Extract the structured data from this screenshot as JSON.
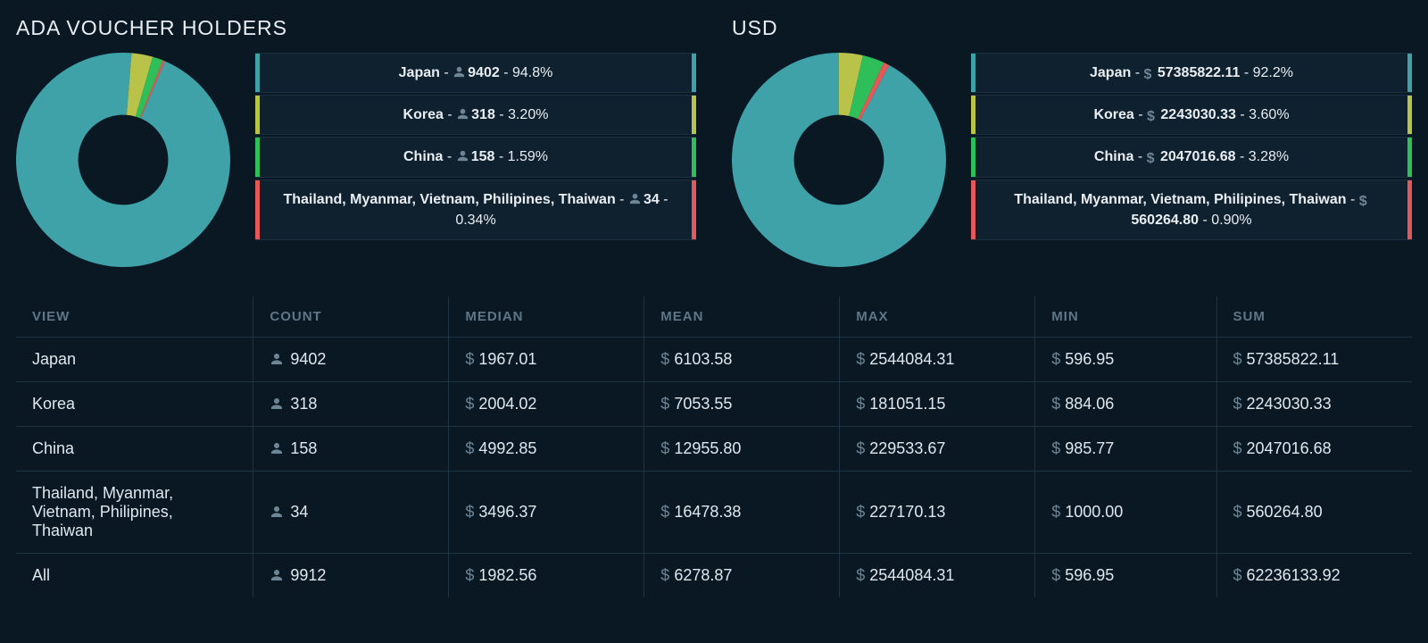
{
  "colors": {
    "teal": "#3fa2a8",
    "olive": "#b9c34a",
    "green": "#2fbf5a",
    "red": "#e35858",
    "bg": "#0a1824",
    "panel": "#0f212f",
    "text": "#e8eef3",
    "muted": "#5e7686",
    "iconMuted": "#6e8595"
  },
  "panels": [
    {
      "key": "holders",
      "title": "ADA VOUCHER HOLDERS",
      "valueIcon": "person",
      "donut": {
        "type": "donut",
        "size": 240,
        "innerRadiusRatio": 0.42,
        "startAngleDeg": -67,
        "slices": [
          {
            "label": "Japan",
            "percent": 94.8,
            "color": "#3fa2a8"
          },
          {
            "label": "Korea",
            "percent": 3.2,
            "color": "#b9c34a"
          },
          {
            "label": "China",
            "percent": 1.59,
            "color": "#2fbf5a"
          },
          {
            "label": "Thailand, Myanmar, Vietnam, Philipines, Thaiwan",
            "percent": 0.34,
            "color": "#e35858"
          }
        ]
      },
      "legend": [
        {
          "label": "Japan",
          "value": "9402",
          "percent": "94.8%",
          "color": "#3fa2a8"
        },
        {
          "label": "Korea",
          "value": "318",
          "percent": "3.20%",
          "color": "#b9c34a"
        },
        {
          "label": "China",
          "value": "158",
          "percent": "1.59%",
          "color": "#2fbf5a"
        },
        {
          "label": "Thailand, Myanmar, Vietnam, Philipines, Thaiwan",
          "value": "34",
          "percent": "0.34%",
          "color": "#e35858"
        }
      ]
    },
    {
      "key": "usd",
      "title": "USD",
      "valueIcon": "dollar",
      "donut": {
        "type": "donut",
        "size": 240,
        "innerRadiusRatio": 0.42,
        "startAngleDeg": -62,
        "slices": [
          {
            "label": "Japan",
            "percent": 92.2,
            "color": "#3fa2a8"
          },
          {
            "label": "Korea",
            "percent": 3.6,
            "color": "#b9c34a"
          },
          {
            "label": "China",
            "percent": 3.28,
            "color": "#2fbf5a"
          },
          {
            "label": "Thailand, Myanmar, Vietnam, Philipines, Thaiwan",
            "percent": 0.9,
            "color": "#e35858"
          }
        ]
      },
      "legend": [
        {
          "label": "Japan",
          "value": "57385822.11",
          "percent": "92.2%",
          "color": "#3fa2a8"
        },
        {
          "label": "Korea",
          "value": "2243030.33",
          "percent": "3.60%",
          "color": "#b9c34a"
        },
        {
          "label": "China",
          "value": "2047016.68",
          "percent": "3.28%",
          "color": "#2fbf5a"
        },
        {
          "label": "Thailand, Myanmar, Vietnam, Philipines, Thaiwan",
          "value": "560264.80",
          "percent": "0.90%",
          "color": "#e35858"
        }
      ]
    }
  ],
  "table": {
    "columns": [
      {
        "key": "view",
        "label": "VIEW"
      },
      {
        "key": "count",
        "label": "COUNT"
      },
      {
        "key": "median",
        "label": "MEDIAN"
      },
      {
        "key": "mean",
        "label": "MEAN"
      },
      {
        "key": "max",
        "label": "MAX"
      },
      {
        "key": "min",
        "label": "MIN"
      },
      {
        "key": "sum",
        "label": "SUM"
      }
    ],
    "rows": [
      {
        "view": "Japan",
        "count": "9402",
        "median": "1967.01",
        "mean": "6103.58",
        "max": "2544084.31",
        "min": "596.95",
        "sum": "57385822.11"
      },
      {
        "view": "Korea",
        "count": "318",
        "median": "2004.02",
        "mean": "7053.55",
        "max": "181051.15",
        "min": "884.06",
        "sum": "2243030.33"
      },
      {
        "view": "China",
        "count": "158",
        "median": "4992.85",
        "mean": "12955.80",
        "max": "229533.67",
        "min": "985.77",
        "sum": "2047016.68"
      },
      {
        "view": "Thailand, Myanmar, Vietnam, Philipines, Thaiwan",
        "count": "34",
        "median": "3496.37",
        "mean": "16478.38",
        "max": "227170.13",
        "min": "1000.00",
        "sum": "560264.80"
      },
      {
        "view": "All",
        "count": "9912",
        "median": "1982.56",
        "mean": "6278.87",
        "max": "2544084.31",
        "min": "596.95",
        "sum": "62236133.92"
      }
    ]
  }
}
